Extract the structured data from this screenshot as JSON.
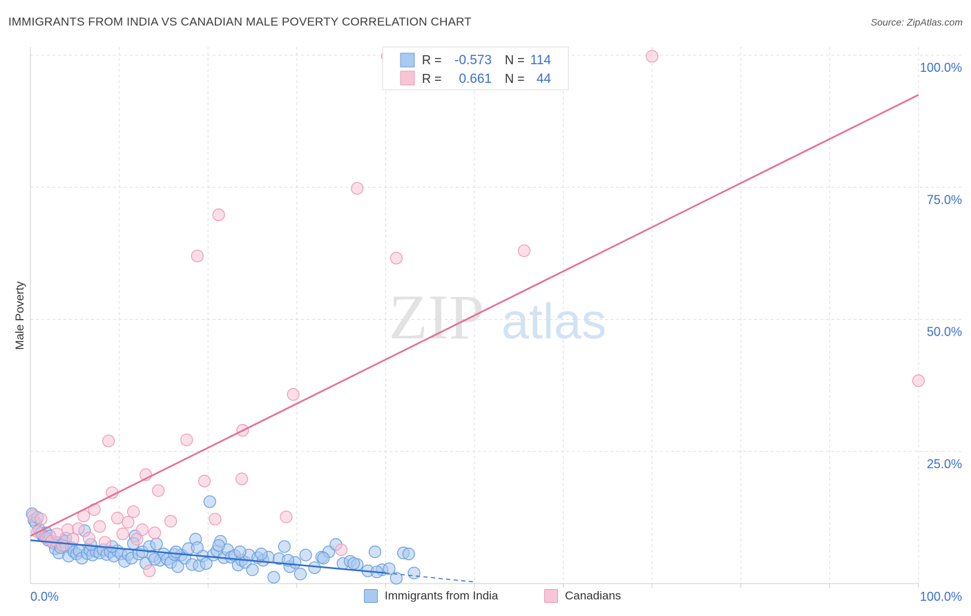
{
  "title": "IMMIGRANTS FROM INDIA VS CANADIAN MALE POVERTY CORRELATION CHART",
  "source": "Source: ZipAtlas.com",
  "watermark": {
    "zip": "ZIP",
    "atlas": "atlas"
  },
  "colors": {
    "blue_fill": "#a9c9ef",
    "blue_stroke": "#6a9fe0",
    "blue_line": "#2f6fcc",
    "pink_fill": "#f7c5d6",
    "pink_stroke": "#ee9ab6",
    "pink_line": "#e76b96",
    "axis_text": "#3a6fcf",
    "grid": "#dddddd"
  },
  "stats": {
    "series1": {
      "r_label": "R =",
      "r_value": "-0.573",
      "n_label": "N =",
      "n_value": "114"
    },
    "series2": {
      "r_label": "R =",
      "r_value": "0.661",
      "n_label": "N =",
      "n_value": "44"
    }
  },
  "chart_data": {
    "type": "scatter",
    "title": "IMMIGRANTS FROM INDIA VS CANADIAN MALE POVERTY CORRELATION CHART",
    "xlabel": "",
    "ylabel": "Male Poverty",
    "xlim": [
      0,
      100
    ],
    "ylim": [
      0,
      100
    ],
    "x_tick_labels": [
      "0.0%",
      "100.0%"
    ],
    "y_ticks": [
      25,
      50,
      75,
      100
    ],
    "y_tick_labels": [
      "25.0%",
      "50.0%",
      "75.0%",
      "100.0%"
    ],
    "grid": true,
    "legend": [
      "Immigrants from India",
      "Canadians"
    ],
    "series": [
      {
        "name": "Immigrants from India",
        "trend": {
          "x": [
            0,
            40
          ],
          "y": [
            8.2,
            2.0
          ],
          "dashed_to": [
            50,
            0.3
          ]
        },
        "points": [
          [
            0.2,
            13.2
          ],
          [
            0.4,
            12.0
          ],
          [
            0.6,
            11.5
          ],
          [
            0.8,
            12.5
          ],
          [
            1.0,
            10.2
          ],
          [
            1.2,
            9.5
          ],
          [
            1.4,
            9.0
          ],
          [
            1.6,
            8.8
          ],
          [
            1.8,
            9.6
          ],
          [
            2.0,
            8.2
          ],
          [
            2.2,
            9.0
          ],
          [
            2.4,
            8.0
          ],
          [
            2.6,
            7.6
          ],
          [
            2.8,
            6.6
          ],
          [
            3.0,
            7.8
          ],
          [
            3.2,
            5.8
          ],
          [
            3.4,
            6.8
          ],
          [
            3.6,
            7.2
          ],
          [
            3.8,
            8.0
          ],
          [
            4.0,
            7.0
          ],
          [
            4.3,
            5.2
          ],
          [
            4.6,
            6.8
          ],
          [
            4.9,
            6.0
          ],
          [
            5.2,
            5.6
          ],
          [
            5.5,
            6.2
          ],
          [
            5.8,
            4.8
          ],
          [
            6.1,
            10.0
          ],
          [
            6.4,
            5.7
          ],
          [
            6.7,
            6.3
          ],
          [
            7.0,
            5.4
          ],
          [
            7.4,
            6.1
          ],
          [
            7.8,
            5.8
          ],
          [
            8.2,
            6.4
          ],
          [
            8.6,
            5.5
          ],
          [
            9.0,
            6.0
          ],
          [
            9.4,
            5.2
          ],
          [
            9.8,
            6.2
          ],
          [
            10.2,
            5.6
          ],
          [
            10.6,
            4.2
          ],
          [
            11.0,
            5.5
          ],
          [
            11.4,
            4.8
          ],
          [
            11.8,
            9.0
          ],
          [
            12.2,
            5.6
          ],
          [
            12.6,
            6.0
          ],
          [
            13.0,
            3.8
          ],
          [
            13.4,
            7.0
          ],
          [
            13.8,
            5.2
          ],
          [
            14.2,
            7.5
          ],
          [
            14.6,
            4.4
          ],
          [
            15.0,
            5.6
          ],
          [
            15.4,
            4.6
          ],
          [
            15.8,
            4.0
          ],
          [
            16.2,
            5.5
          ],
          [
            16.6,
            3.2
          ],
          [
            17.0,
            5.4
          ],
          [
            17.4,
            4.8
          ],
          [
            17.8,
            6.6
          ],
          [
            18.2,
            3.6
          ],
          [
            18.6,
            8.4
          ],
          [
            19.0,
            3.4
          ],
          [
            19.4,
            5.2
          ],
          [
            19.8,
            3.8
          ],
          [
            20.2,
            15.5
          ],
          [
            20.6,
            5.4
          ],
          [
            21.0,
            6.2
          ],
          [
            21.4,
            8.0
          ],
          [
            21.8,
            4.9
          ],
          [
            22.2,
            6.4
          ],
          [
            22.6,
            5.0
          ],
          [
            23.0,
            5.3
          ],
          [
            23.4,
            3.5
          ],
          [
            23.8,
            4.4
          ],
          [
            24.2,
            4.0
          ],
          [
            24.6,
            5.4
          ],
          [
            25.0,
            2.6
          ],
          [
            25.6,
            4.9
          ],
          [
            26.2,
            4.4
          ],
          [
            26.8,
            5.0
          ],
          [
            27.4,
            1.2
          ],
          [
            28.0,
            4.7
          ],
          [
            28.6,
            7.0
          ],
          [
            29.2,
            3.2
          ],
          [
            29.8,
            4.0
          ],
          [
            30.4,
            1.8
          ],
          [
            31.0,
            5.4
          ],
          [
            32.0,
            3.0
          ],
          [
            32.8,
            5.0
          ],
          [
            33.6,
            6.0
          ],
          [
            34.4,
            7.4
          ],
          [
            35.2,
            3.8
          ],
          [
            36.0,
            4.2
          ],
          [
            36.8,
            3.6
          ],
          [
            38.0,
            2.4
          ],
          [
            38.8,
            6.0
          ],
          [
            39.6,
            2.6
          ],
          [
            40.4,
            2.8
          ],
          [
            41.2,
            1.0
          ],
          [
            42.0,
            5.8
          ],
          [
            42.6,
            5.6
          ],
          [
            43.2,
            2.0
          ],
          [
            4.0,
            8.6
          ],
          [
            6.8,
            7.4
          ],
          [
            9.2,
            7.0
          ],
          [
            11.6,
            7.6
          ],
          [
            14.0,
            4.6
          ],
          [
            16.4,
            6.0
          ],
          [
            18.8,
            6.8
          ],
          [
            21.2,
            7.2
          ],
          [
            23.6,
            6.0
          ],
          [
            26.0,
            5.6
          ],
          [
            29.0,
            4.4
          ],
          [
            33.0,
            4.8
          ],
          [
            36.4,
            3.8
          ],
          [
            39.0,
            2.2
          ]
        ]
      },
      {
        "name": "Canadians",
        "trend": {
          "x": [
            0,
            100
          ],
          "y": [
            9.0,
            92.5
          ]
        },
        "points": [
          [
            0.3,
            12.8
          ],
          [
            0.8,
            9.8
          ],
          [
            1.2,
            12.2
          ],
          [
            1.8,
            8.6
          ],
          [
            2.4,
            8.0
          ],
          [
            3.0,
            9.4
          ],
          [
            3.6,
            7.2
          ],
          [
            4.2,
            10.2
          ],
          [
            4.8,
            8.4
          ],
          [
            5.4,
            10.4
          ],
          [
            6.0,
            12.8
          ],
          [
            6.6,
            8.6
          ],
          [
            7.2,
            14.0
          ],
          [
            7.8,
            10.8
          ],
          [
            8.4,
            7.8
          ],
          [
            8.8,
            27.0
          ],
          [
            9.2,
            17.2
          ],
          [
            9.8,
            12.4
          ],
          [
            10.4,
            9.4
          ],
          [
            11.0,
            11.6
          ],
          [
            11.6,
            13.6
          ],
          [
            12.0,
            8.4
          ],
          [
            12.6,
            10.2
          ],
          [
            13.0,
            20.6
          ],
          [
            13.4,
            2.4
          ],
          [
            14.4,
            17.6
          ],
          [
            15.8,
            11.8
          ],
          [
            17.6,
            27.2
          ],
          [
            18.8,
            62.0
          ],
          [
            19.6,
            19.4
          ],
          [
            20.8,
            12.2
          ],
          [
            21.2,
            69.8
          ],
          [
            23.8,
            19.8
          ],
          [
            23.9,
            29.0
          ],
          [
            28.8,
            12.6
          ],
          [
            29.6,
            35.8
          ],
          [
            35.0,
            6.4
          ],
          [
            36.8,
            74.8
          ],
          [
            40.2,
            99.8
          ],
          [
            41.2,
            61.6
          ],
          [
            55.6,
            63.0
          ],
          [
            70.0,
            99.8
          ],
          [
            100.0,
            38.4
          ],
          [
            14.0,
            9.6
          ]
        ]
      }
    ]
  }
}
